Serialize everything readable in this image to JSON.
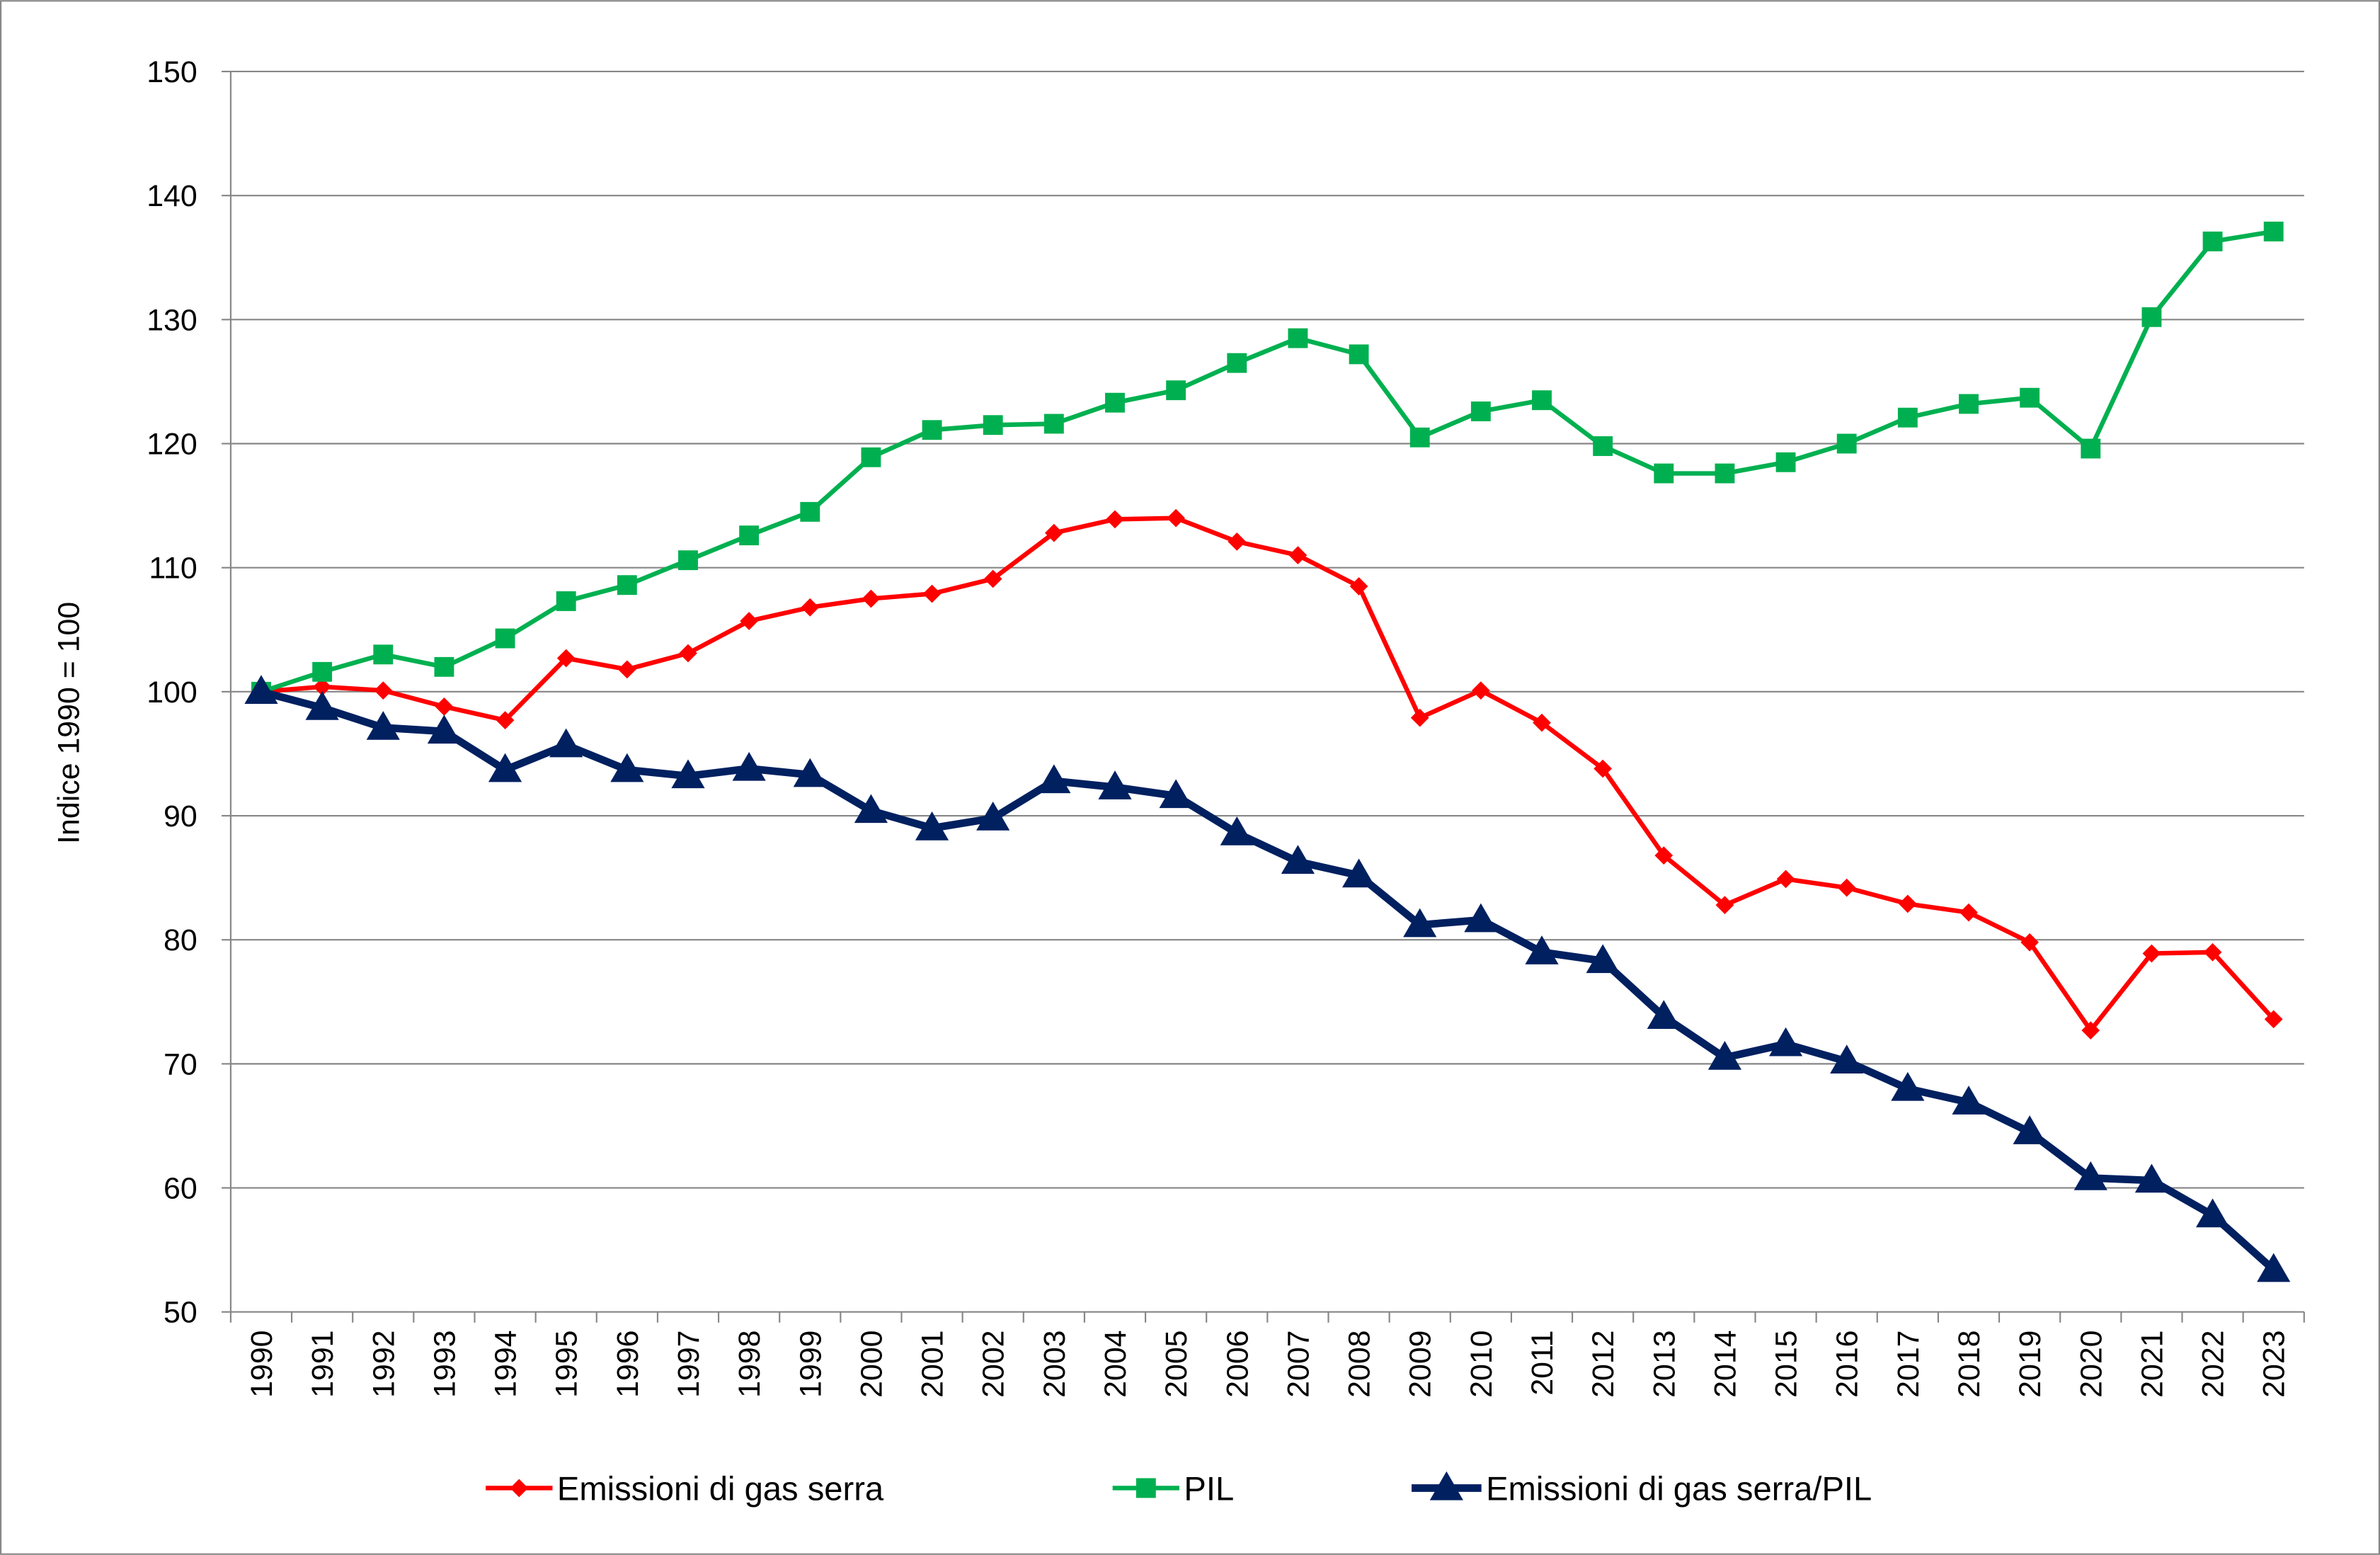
{
  "chart_data": {
    "type": "line",
    "title": "",
    "xlabel": "",
    "ylabel": "Indice 1990 = 100",
    "ylim": [
      50,
      150
    ],
    "yticks": [
      50,
      60,
      70,
      80,
      90,
      100,
      110,
      120,
      130,
      140,
      150
    ],
    "grid": true,
    "legend_position": "bottom",
    "x": [
      1990,
      1991,
      1992,
      1993,
      1994,
      1995,
      1996,
      1997,
      1998,
      1999,
      2000,
      2001,
      2002,
      2003,
      2004,
      2005,
      2006,
      2007,
      2008,
      2009,
      2010,
      2011,
      2012,
      2013,
      2014,
      2015,
      2016,
      2017,
      2018,
      2019,
      2020,
      2021,
      2022,
      2023
    ],
    "series": [
      {
        "name": "Emissioni di gas serra",
        "color": "#ff0000",
        "marker": "diamond",
        "values": [
          100,
          100.4,
          100.1,
          98.8,
          97.7,
          102.7,
          101.8,
          103.1,
          105.7,
          106.8,
          107.5,
          107.9,
          109.1,
          112.8,
          113.9,
          114.0,
          112.1,
          111.0,
          108.5,
          97.9,
          100.1,
          97.5,
          93.8,
          86.8,
          82.8,
          84.9,
          84.2,
          82.9,
          82.2,
          79.8,
          72.7,
          78.9,
          79.0,
          73.6
        ]
      },
      {
        "name": "PIL",
        "color": "#00b050",
        "marker": "square",
        "values": [
          100,
          101.6,
          103.0,
          102.0,
          104.3,
          107.3,
          108.6,
          110.6,
          112.6,
          114.5,
          118.9,
          121.1,
          121.5,
          121.6,
          123.3,
          124.3,
          126.5,
          128.5,
          127.2,
          120.5,
          122.6,
          123.5,
          119.8,
          117.6,
          117.6,
          118.5,
          120.0,
          122.1,
          123.2,
          123.7,
          119.6,
          130.2,
          136.3,
          137.1
        ]
      },
      {
        "name": "Emissioni di gas serra/PIL",
        "color": "#002060",
        "marker": "triangle",
        "values": [
          100,
          98.7,
          97.1,
          96.8,
          93.7,
          95.7,
          93.7,
          93.2,
          93.8,
          93.3,
          90.4,
          89.0,
          89.8,
          92.8,
          92.3,
          91.6,
          88.6,
          86.3,
          85.2,
          81.2,
          81.6,
          79.0,
          78.3,
          73.8,
          70.5,
          71.6,
          70.2,
          68.0,
          66.9,
          64.5,
          60.8,
          60.6,
          57.8,
          53.4
        ]
      }
    ]
  }
}
